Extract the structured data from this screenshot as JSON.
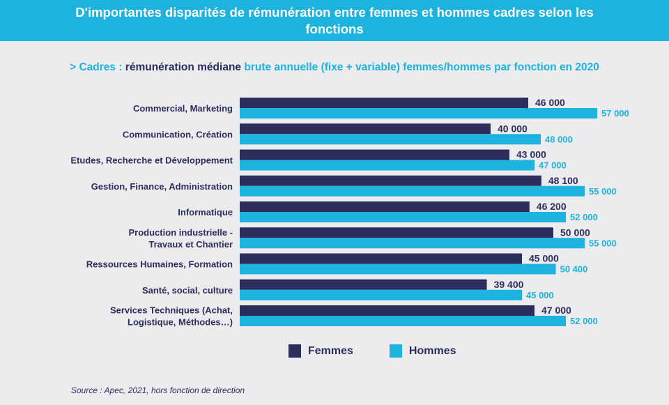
{
  "header": {
    "title": "D'importantes disparités de rémunération entre femmes et hommes cadres selon les fonctions"
  },
  "subtitle": {
    "prefix": "> Cadres : ",
    "emphasis": "rémunération médiane",
    "rest": " brute annuelle (fixe + variable) femmes/hommes par fonction en 2020"
  },
  "chart_data": {
    "type": "bar",
    "orientation": "horizontal",
    "title": "",
    "xlabel": "",
    "ylabel": "",
    "xlim": [
      0,
      62000
    ],
    "grid": false,
    "legend_position": "bottom",
    "categories": [
      [
        "Commercial, Marketing"
      ],
      [
        "Communication, Création"
      ],
      [
        "Etudes, Recherche et Développement"
      ],
      [
        "Gestion, Finance, Administration"
      ],
      [
        "Informatique"
      ],
      [
        "Production industrielle -",
        "Travaux et Chantier"
      ],
      [
        "Ressources Humaines, Formation"
      ],
      [
        "Santé, social, culture"
      ],
      [
        "Services Techniques (Achat,",
        "Logistique, Méthodes…)"
      ]
    ],
    "series": [
      {
        "name": "Femmes",
        "color": "#2b2e5d",
        "values": [
          46000,
          40000,
          43000,
          48100,
          46200,
          50000,
          45000,
          39400,
          47000
        ],
        "labels": [
          "46 000",
          "40 000",
          "43 000",
          "48 100",
          "46 200",
          "50 000",
          "45 000",
          "39 400",
          "47 000"
        ]
      },
      {
        "name": "Hommes",
        "color": "#1eb3df",
        "values": [
          57000,
          48000,
          47000,
          55000,
          52000,
          55000,
          50400,
          45000,
          52000
        ],
        "labels": [
          "57 000",
          "48 000",
          "47 000",
          "55 000",
          "52 000",
          "55 000",
          "50 400",
          "45 000",
          "52 000"
        ]
      }
    ]
  },
  "legend": {
    "femmes": "Femmes",
    "hommes": "Hommes",
    "femmes_color": "#2b2e5d",
    "hommes_color": "#1eb3df"
  },
  "source": "Source : Apec, 2021, hors fonction de direction"
}
